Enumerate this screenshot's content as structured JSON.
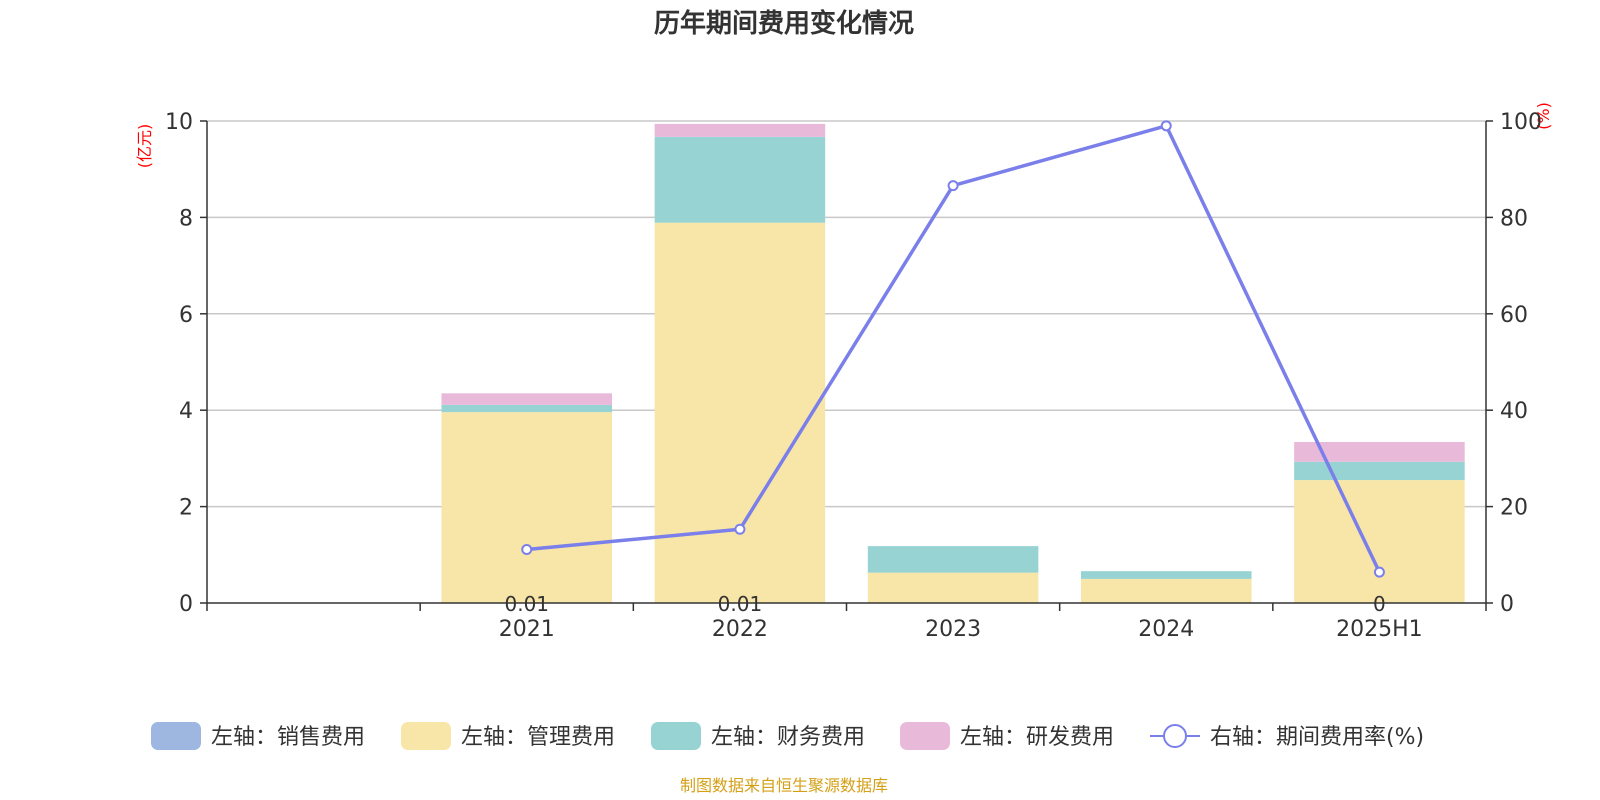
{
  "chart_data": {
    "type": "bar",
    "title": "历年期间费用变化情况",
    "categories": [
      "",
      "2021",
      "2022",
      "2023",
      "2024",
      "2025H1"
    ],
    "left_axis": {
      "unit": "(亿元)",
      "ylim": [
        0,
        10
      ],
      "ticks": [
        0,
        2,
        4,
        6,
        8,
        10
      ]
    },
    "right_axis": {
      "unit": "(%)",
      "ylim": [
        0,
        100
      ],
      "ticks": [
        0,
        20,
        40,
        60,
        80,
        100
      ]
    },
    "stacked": true,
    "series": [
      {
        "name": "左轴：销售费用",
        "color": "#9db7e0",
        "values": [
          null,
          0.01,
          0.01,
          0,
          0,
          0
        ],
        "data_labels": [
          "",
          "0.01",
          "0.01",
          "",
          "",
          "0"
        ]
      },
      {
        "name": "左轴：管理费用",
        "color": "#f8e6a8",
        "values": [
          null,
          3.95,
          7.88,
          0.63,
          0.5,
          2.55
        ]
      },
      {
        "name": "左轴：财务费用",
        "color": "#96d3d2",
        "values": [
          null,
          0.15,
          1.78,
          0.55,
          0.16,
          0.38
        ]
      },
      {
        "name": "左轴：研发费用",
        "color": "#e8b9d9",
        "values": [
          null,
          0.24,
          0.27,
          0,
          0,
          0.41
        ]
      }
    ],
    "line": {
      "name": "右轴：期间费用率(%)",
      "color": "#7b7fea",
      "values": [
        null,
        11.1,
        15.3,
        86.6,
        99.0,
        6.4
      ]
    },
    "grid": true,
    "legend_position": "bottom"
  },
  "source_note": "制图数据来自恒生聚源数据库"
}
